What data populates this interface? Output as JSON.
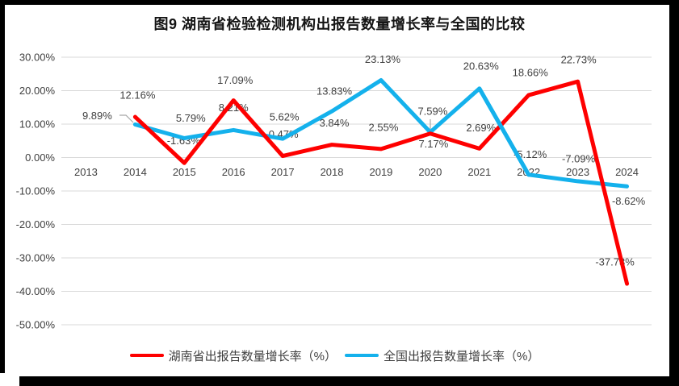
{
  "chart_data": {
    "type": "line",
    "title": "图9 湖南省检验检测机构出报告数量增长率与全国的比较",
    "categories": [
      "2013",
      "2014",
      "2015",
      "2016",
      "2017",
      "2018",
      "2019",
      "2020",
      "2021",
      "2022",
      "2023",
      "2024"
    ],
    "series": [
      {
        "name": "湖南省出报告数量增长率（%）",
        "color": "#FE0000",
        "values": [
          null,
          12.16,
          -1.63,
          17.09,
          0.47,
          3.84,
          2.55,
          7.17,
          2.69,
          18.66,
          22.73,
          -37.73
        ],
        "labels": [
          "",
          "12.16%",
          "-1.63%",
          "17.09%",
          "0.47%",
          "3.84%",
          "2.55%",
          "7.17%",
          "2.69%",
          "18.66%",
          "22.73%",
          "-37.73%"
        ]
      },
      {
        "name": "全国出报告数量增长率（%）",
        "color": "#14B1EC",
        "values": [
          null,
          9.89,
          5.79,
          8.21,
          5.62,
          13.83,
          23.13,
          7.59,
          20.63,
          -5.12,
          -7.09,
          -8.62
        ],
        "labels": [
          "",
          "9.89%",
          "5.79%",
          "8.21%",
          "5.62%",
          "13.83%",
          "23.13%",
          "7.59%",
          "20.63%",
          "-5.12%",
          "-7.09%",
          "-8.62%"
        ]
      }
    ],
    "y_ticks": [
      "30.00%",
      "20.00%",
      "10.00%",
      "0.00%",
      "-10.00%",
      "-20.00%",
      "-30.00%",
      "-40.00%",
      "-50.00%"
    ],
    "y_tick_values": [
      30,
      20,
      10,
      0,
      -10,
      -20,
      -30,
      -40,
      -50
    ],
    "ylim": [
      -50,
      30
    ],
    "grid": true,
    "legend_position": "bottom",
    "colors": {
      "gridline": "#D9D9D9",
      "axis_text": "#404040",
      "data_label_text": "#404040",
      "leader_line": "#A6A6A6",
      "title_text": "#141414"
    }
  }
}
